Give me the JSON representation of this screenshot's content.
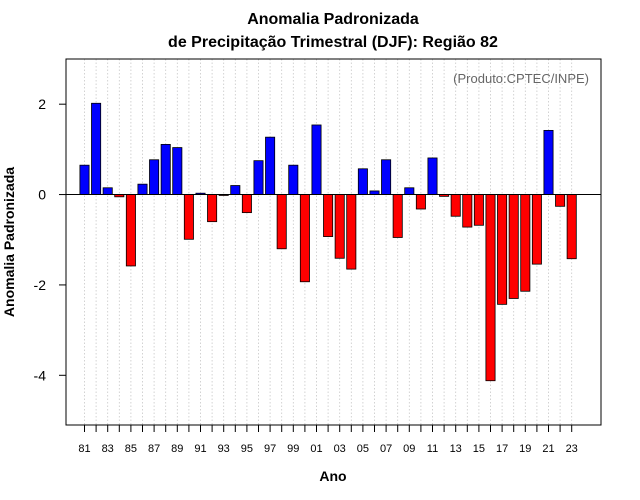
{
  "chart_data": {
    "type": "bar",
    "title": "Anomalia Padronizada",
    "subtitle": "de Precipitação Trimestral (DJF): Região 82",
    "source_note": "(Produto:CPTEC/INPE)",
    "xlabel": "Ano",
    "ylabel": "Anomalia Padronizada",
    "ylim": [
      -5.1,
      3.0
    ],
    "yticks": [
      -4,
      -2,
      0,
      2
    ],
    "grid": "vertical dotted",
    "positive_color": "#0000ff",
    "negative_color": "#ff0000",
    "categories": [
      "81",
      "82",
      "83",
      "84",
      "85",
      "86",
      "87",
      "88",
      "89",
      "90",
      "91",
      "92",
      "93",
      "94",
      "95",
      "96",
      "97",
      "98",
      "99",
      "00",
      "01",
      "02",
      "03",
      "04",
      "05",
      "06",
      "07",
      "08",
      "09",
      "10",
      "11",
      "12",
      "13",
      "14",
      "15",
      "16",
      "17",
      "18",
      "19",
      "20",
      "21",
      "22",
      "23"
    ],
    "x_tick_labels": [
      "81",
      "83",
      "85",
      "87",
      "89",
      "91",
      "93",
      "95",
      "97",
      "99",
      "01",
      "03",
      "05",
      "07",
      "09",
      "11",
      "13",
      "15",
      "17",
      "19",
      "21",
      "23"
    ],
    "values": [
      0.65,
      2.02,
      0.15,
      -0.05,
      -1.58,
      0.23,
      0.77,
      1.11,
      1.04,
      -0.99,
      0.03,
      -0.6,
      -0.02,
      0.2,
      -0.4,
      0.75,
      1.27,
      -1.2,
      0.65,
      -1.93,
      1.54,
      -0.93,
      -1.41,
      -1.65,
      0.57,
      0.08,
      0.77,
      -0.95,
      0.15,
      -0.32,
      0.81,
      -0.04,
      -0.48,
      -0.72,
      -0.68,
      -4.12,
      -2.43,
      -2.3,
      -2.14,
      -1.54,
      1.42,
      -0.26,
      -1.42
    ]
  }
}
